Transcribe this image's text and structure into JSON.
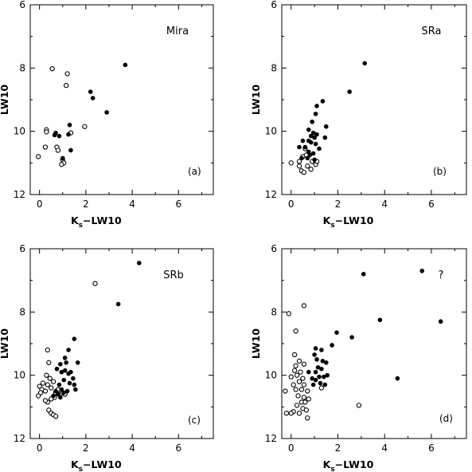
{
  "figure": {
    "xlabel_main": "K",
    "xlabel_sub": "s",
    "xlabel_rest": "−LW10",
    "ylabel": "LW10"
  },
  "chart_data": [
    {
      "type": "scatter",
      "title": "Mira",
      "tag": "(a)",
      "xlim": [
        -0.4,
        7.5
      ],
      "ylim": [
        12,
        6
      ],
      "y_inverted": true,
      "xticks": [
        0,
        2,
        4,
        6
      ],
      "yticks": [
        6,
        8,
        10,
        12
      ],
      "series": [
        {
          "marker": "open",
          "points": [
            [
              0.55,
              8.02
            ],
            [
              1.2,
              8.18
            ],
            [
              1.15,
              8.55
            ],
            [
              0.3,
              9.95
            ],
            [
              0.3,
              10.02
            ],
            [
              0.25,
              10.5
            ],
            [
              0.75,
              10.5
            ],
            [
              0.8,
              10.6
            ],
            [
              -0.05,
              10.8
            ],
            [
              1.0,
              10.9
            ],
            [
              1.05,
              11.0
            ],
            [
              0.95,
              11.05
            ],
            [
              1.35,
              10.05
            ],
            [
              1.95,
              9.85
            ]
          ]
        },
        {
          "marker": "filled",
          "points": [
            [
              3.7,
              7.9
            ],
            [
              2.2,
              8.75
            ],
            [
              2.3,
              8.95
            ],
            [
              2.9,
              9.4
            ],
            [
              1.3,
              9.8
            ],
            [
              0.65,
              10.12
            ],
            [
              0.7,
              10.05
            ],
            [
              0.85,
              10.15
            ],
            [
              1.25,
              10.1
            ],
            [
              1.35,
              10.6
            ],
            [
              1.0,
              10.85
            ]
          ]
        }
      ]
    },
    {
      "type": "scatter",
      "title": "SRa",
      "tag": "(b)",
      "xlim": [
        -0.4,
        7.5
      ],
      "ylim": [
        12,
        6
      ],
      "y_inverted": true,
      "xticks": [
        0,
        2,
        4,
        6
      ],
      "yticks": [
        6,
        8,
        10,
        12
      ],
      "series": [
        {
          "marker": "open",
          "points": [
            [
              0.0,
              11.0
            ],
            [
              0.35,
              11.1
            ],
            [
              0.45,
              11.25
            ],
            [
              0.55,
              11.3
            ],
            [
              0.7,
              11.1
            ],
            [
              0.85,
              11.2
            ],
            [
              1.05,
              11.05
            ],
            [
              0.5,
              10.8
            ],
            [
              0.35,
              10.95
            ],
            [
              0.9,
              10.95
            ],
            [
              1.1,
              10.95
            ],
            [
              0.6,
              10.55
            ],
            [
              0.65,
              10.75
            ]
          ]
        },
        {
          "marker": "filled",
          "points": [
            [
              3.15,
              7.85
            ],
            [
              2.5,
              8.75
            ],
            [
              1.35,
              9.05
            ],
            [
              1.1,
              9.2
            ],
            [
              1.05,
              9.45
            ],
            [
              0.9,
              9.7
            ],
            [
              1.5,
              9.85
            ],
            [
              0.75,
              9.95
            ],
            [
              0.95,
              10.05
            ],
            [
              1.1,
              10.1
            ],
            [
              0.85,
              10.15
            ],
            [
              1.0,
              10.2
            ],
            [
              1.45,
              10.2
            ],
            [
              0.5,
              10.3
            ],
            [
              0.75,
              10.3
            ],
            [
              0.85,
              10.35
            ],
            [
              1.05,
              10.4
            ],
            [
              0.35,
              10.5
            ],
            [
              0.6,
              10.5
            ],
            [
              1.2,
              10.55
            ],
            [
              0.75,
              10.65
            ],
            [
              0.8,
              10.75
            ],
            [
              0.95,
              10.7
            ],
            [
              0.45,
              10.85
            ],
            [
              0.7,
              10.85
            ],
            [
              1.0,
              10.9
            ]
          ]
        }
      ]
    },
    {
      "type": "scatter",
      "title": "SRb",
      "tag": "(c)",
      "xlim": [
        -0.4,
        7.5
      ],
      "ylim": [
        12,
        6
      ],
      "y_inverted": true,
      "xticks": [
        0,
        2,
        4,
        6
      ],
      "yticks": [
        6,
        8,
        10,
        12
      ],
      "series": [
        {
          "marker": "open",
          "points": [
            [
              2.4,
              7.1
            ],
            [
              0.35,
              9.2
            ],
            [
              0.4,
              9.6
            ],
            [
              0.3,
              10.0
            ],
            [
              0.0,
              10.35
            ],
            [
              0.15,
              10.25
            ],
            [
              0.1,
              10.45
            ],
            [
              0.05,
              10.55
            ],
            [
              -0.05,
              10.65
            ],
            [
              0.25,
              10.5
            ],
            [
              0.35,
              10.3
            ],
            [
              0.5,
              10.4
            ],
            [
              0.6,
              10.2
            ],
            [
              0.7,
              10.55
            ],
            [
              0.8,
              10.45
            ],
            [
              0.9,
              10.6
            ],
            [
              0.65,
              10.7
            ],
            [
              0.5,
              10.75
            ],
            [
              0.35,
              10.85
            ],
            [
              0.4,
              11.1
            ],
            [
              0.5,
              11.2
            ],
            [
              0.6,
              11.25
            ],
            [
              0.7,
              11.3
            ],
            [
              1.0,
              10.55
            ],
            [
              1.1,
              10.6
            ],
            [
              0.25,
              10.8
            ],
            [
              0.45,
              10.1
            ]
          ]
        },
        {
          "marker": "filled",
          "points": [
            [
              4.3,
              6.45
            ],
            [
              3.4,
              7.75
            ],
            [
              1.5,
              8.85
            ],
            [
              1.25,
              9.2
            ],
            [
              1.1,
              9.45
            ],
            [
              0.9,
              9.65
            ],
            [
              1.15,
              9.6
            ],
            [
              1.65,
              9.6
            ],
            [
              0.75,
              9.8
            ],
            [
              0.95,
              9.9
            ],
            [
              1.1,
              9.85
            ],
            [
              1.25,
              9.95
            ],
            [
              1.35,
              9.9
            ],
            [
              1.45,
              10.1
            ],
            [
              1.05,
              10.15
            ],
            [
              1.3,
              10.25
            ],
            [
              1.5,
              10.3
            ],
            [
              1.55,
              10.45
            ],
            [
              0.85,
              10.3
            ],
            [
              0.95,
              10.45
            ],
            [
              1.2,
              10.5
            ],
            [
              0.7,
              10.5
            ],
            [
              0.8,
              10.6
            ],
            [
              0.6,
              10.65
            ],
            [
              0.9,
              10.7
            ],
            [
              1.05,
              10.55
            ]
          ]
        }
      ]
    },
    {
      "type": "scatter",
      "title": "?",
      "tag": "(d)",
      "xlim": [
        -0.4,
        7.5
      ],
      "ylim": [
        12,
        6
      ],
      "y_inverted": true,
      "xticks": [
        0,
        2,
        4,
        6
      ],
      "yticks": [
        6,
        8,
        10,
        12
      ],
      "series": [
        {
          "marker": "open",
          "points": [
            [
              0.55,
              7.8
            ],
            [
              -0.1,
              8.05
            ],
            [
              0.2,
              8.6
            ],
            [
              0.15,
              9.35
            ],
            [
              0.35,
              9.55
            ],
            [
              0.55,
              9.65
            ],
            [
              0.2,
              9.7
            ],
            [
              0.15,
              9.85
            ],
            [
              0.4,
              9.9
            ],
            [
              0.0,
              10.05
            ],
            [
              0.25,
              10.0
            ],
            [
              0.5,
              10.1
            ],
            [
              0.35,
              10.2
            ],
            [
              0.1,
              10.3
            ],
            [
              0.55,
              10.3
            ],
            [
              0.2,
              10.45
            ],
            [
              -0.25,
              10.5
            ],
            [
              0.45,
              10.45
            ],
            [
              0.7,
              10.5
            ],
            [
              0.3,
              10.65
            ],
            [
              0.55,
              10.7
            ],
            [
              0.75,
              10.75
            ],
            [
              0.45,
              10.85
            ],
            [
              0.6,
              10.85
            ],
            [
              0.25,
              10.95
            ],
            [
              0.5,
              11.05
            ],
            [
              0.65,
              11.1
            ],
            [
              0.1,
              11.15
            ],
            [
              0.35,
              11.2
            ],
            [
              -0.2,
              11.2
            ],
            [
              0.0,
              11.2
            ],
            [
              0.7,
              11.35
            ],
            [
              1.3,
              10.4
            ],
            [
              2.9,
              10.95
            ]
          ]
        },
        {
          "marker": "filled",
          "points": [
            [
              3.1,
              6.8
            ],
            [
              5.6,
              6.7
            ],
            [
              3.8,
              8.25
            ],
            [
              6.4,
              8.3
            ],
            [
              1.95,
              8.65
            ],
            [
              2.6,
              8.8
            ],
            [
              1.75,
              9.05
            ],
            [
              1.05,
              9.15
            ],
            [
              1.3,
              9.2
            ],
            [
              1.0,
              9.35
            ],
            [
              1.1,
              9.5
            ],
            [
              1.35,
              9.55
            ],
            [
              1.5,
              9.6
            ],
            [
              1.15,
              9.75
            ],
            [
              1.3,
              9.8
            ],
            [
              0.75,
              9.9
            ],
            [
              1.05,
              9.9
            ],
            [
              1.55,
              10.0
            ],
            [
              1.4,
              10.05
            ],
            [
              1.2,
              10.05
            ],
            [
              0.9,
              10.1
            ],
            [
              1.05,
              10.15
            ],
            [
              1.25,
              10.25
            ],
            [
              0.95,
              10.3
            ],
            [
              1.45,
              10.3
            ],
            [
              4.55,
              10.1
            ]
          ]
        }
      ]
    }
  ]
}
